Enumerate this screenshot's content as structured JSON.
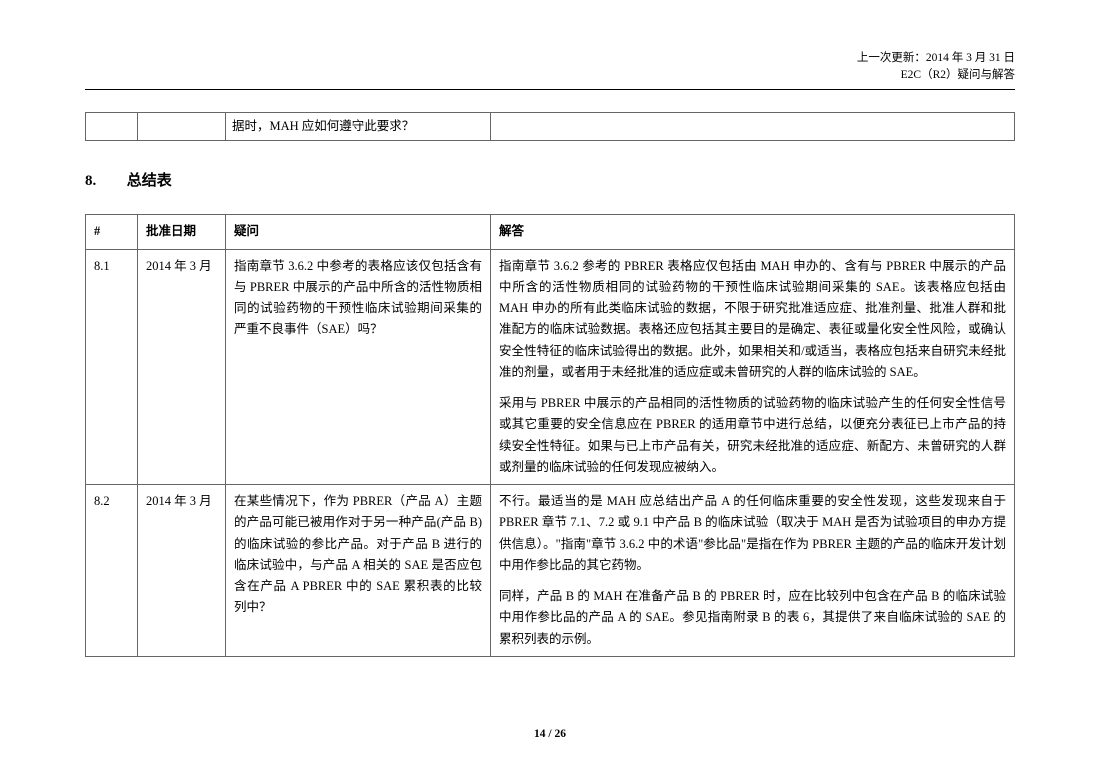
{
  "header": {
    "last_update_label": "上一次更新：",
    "last_update_value": "2014 年 3 月 31 日",
    "doc_ref": "E2C（R2）疑问与解答"
  },
  "fragment_row": {
    "num": "",
    "date": "",
    "question": "据时，MAH 应如何遵守此要求？",
    "answer": ""
  },
  "section": {
    "number": "8.",
    "title": "总结表"
  },
  "table": {
    "columns": {
      "num": "#",
      "date": "批准日期",
      "question": "疑问",
      "answer": "解答"
    },
    "rows": [
      {
        "num": "8.1",
        "date": "2014 年 3 月",
        "question": "指南章节 3.6.2 中参考的表格应该仅包括含有与 PBRER 中展示的产品中所含的活性物质相同的试验药物的干预性临床试验期间采集的严重不良事件（SAE）吗？",
        "answer_p1": "指南章节 3.6.2 参考的 PBRER 表格应仅包括由 MAH 申办的、含有与 PBRER 中展示的产品中所含的活性物质相同的试验药物的干预性临床试验期间采集的 SAE。该表格应包括由 MAH 申办的所有此类临床试验的数据，不限于研究批准适应症、批准剂量、批准人群和批准配方的临床试验数据。表格还应包括其主要目的是确定、表征或量化安全性风险，或确认安全性特征的临床试验得出的数据。此外，如果相关和/或适当，表格应包括来自研究未经批准的剂量，或者用于未经批准的适应症或未曾研究的人群的临床试验的 SAE。",
        "answer_p2": "采用与 PBRER 中展示的产品相同的活性物质的试验药物的临床试验产生的任何安全性信号或其它重要的安全信息应在 PBRER 的适用章节中进行总结，以便充分表征已上市产品的持续安全性特征。如果与已上市产品有关，研究未经批准的适应症、新配方、未曾研究的人群或剂量的临床试验的任何发现应被纳入。"
      },
      {
        "num": "8.2",
        "date": "2014 年 3 月",
        "question": "在某些情况下，作为 PBRER（产品 A）主题的产品可能已被用作对于另一种产品(产品 B)的临床试验的参比产品。对于产品 B 进行的临床试验中，与产品 A 相关的 SAE 是否应包含在产品 A PBRER 中的 SAE 累积表的比较列中？",
        "answer_p1": "不行。最适当的是 MAH 应总结出产品 A 的任何临床重要的安全性发现，这些发现来自于 PBRER 章节 7.1、7.2 或 9.1 中产品 B 的临床试验（取决于 MAH 是否为试验项目的申办方提供信息）。\"指南\"章节 3.6.2 中的术语\"参比品\"是指在作为 PBRER 主题的产品的临床开发计划中用作参比品的其它药物。",
        "answer_p2": "同样，产品 B 的 MAH 在准备产品 B 的 PBRER 时，应在比较列中包含在产品 B 的临床试验中用作参比品的产品 A 的 SAE。参见指南附录 B 的表 6，其提供了来自临床试验的 SAE 的累积列表的示例。"
      }
    ]
  },
  "footer": {
    "page_current": "14",
    "page_sep": " / ",
    "page_total": "26"
  }
}
